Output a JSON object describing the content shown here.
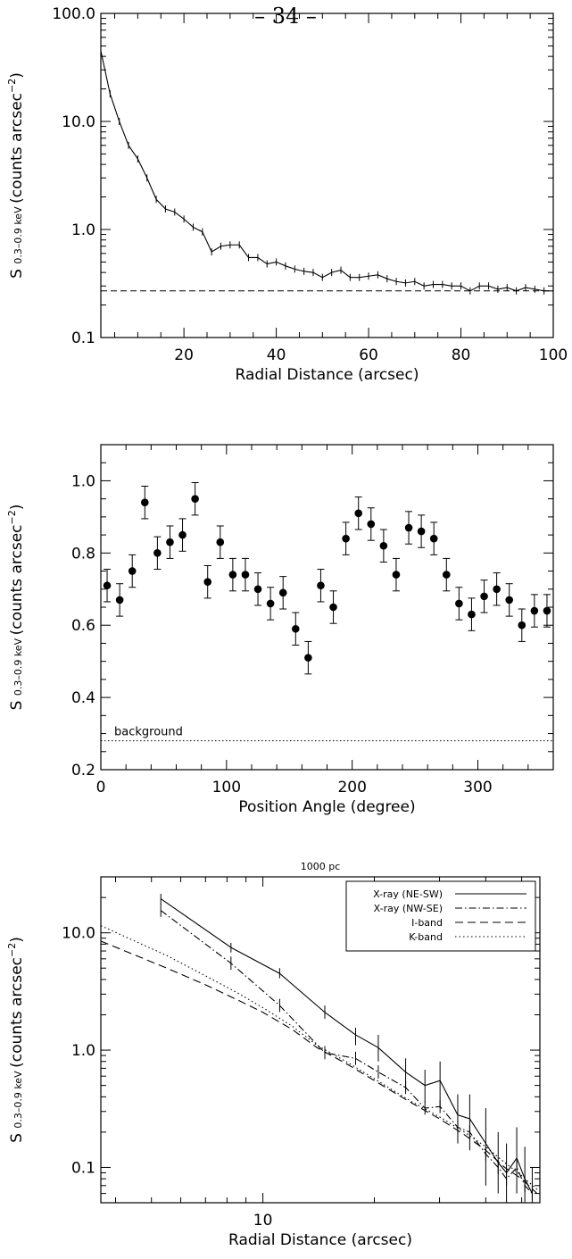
{
  "page": {
    "header": "– 34 –"
  },
  "ylabel": {
    "prefix": "S",
    "sub": "0.3–0.9 keV",
    "body": "(counts arcsec",
    "sup": "−2",
    "suffix": ")"
  },
  "chart_data": [
    {
      "type": "line",
      "xlabel": "Radial Distance (arcsec)",
      "xscale": "linear",
      "yscale": "log",
      "xlim": [
        2,
        100
      ],
      "ylim": [
        0.1,
        100
      ],
      "xticks": [
        20,
        40,
        60,
        80,
        100
      ],
      "xtick_labels": [
        "20",
        "40",
        "60",
        "80",
        "100"
      ],
      "yticks": [
        0.1,
        1,
        10,
        100
      ],
      "ytick_labels": [
        "0.1",
        "1.0",
        "10.0",
        "100.0"
      ],
      "background_level": 0.27,
      "series": [
        {
          "x": [
            2,
            4,
            6,
            8,
            10,
            12,
            14,
            16,
            18,
            20,
            22,
            24,
            26,
            28,
            30,
            32,
            34,
            36,
            38,
            40,
            42,
            44,
            46,
            48,
            50,
            52,
            54,
            56,
            58,
            60,
            62,
            64,
            66,
            68,
            70,
            72,
            74,
            76,
            78,
            80,
            82,
            84,
            86,
            88,
            90,
            92,
            94,
            96,
            98,
            100
          ],
          "y": [
            45,
            18,
            10,
            6,
            4.5,
            3,
            1.9,
            1.55,
            1.45,
            1.25,
            1.05,
            0.95,
            0.62,
            0.7,
            0.72,
            0.72,
            0.55,
            0.55,
            0.48,
            0.5,
            0.46,
            0.43,
            0.41,
            0.4,
            0.36,
            0.4,
            0.42,
            0.36,
            0.36,
            0.37,
            0.38,
            0.35,
            0.33,
            0.32,
            0.33,
            0.3,
            0.31,
            0.31,
            0.3,
            0.3,
            0.27,
            0.3,
            0.3,
            0.28,
            0.29,
            0.27,
            0.29,
            0.28,
            0.27,
            0.27
          ]
        }
      ]
    },
    {
      "type": "scatter",
      "xlabel": "Position Angle (degree)",
      "xscale": "linear",
      "yscale": "linear",
      "xlim": [
        0,
        360
      ],
      "ylim": [
        0.2,
        1.1
      ],
      "xticks": [
        0,
        100,
        200,
        300
      ],
      "xtick_labels": [
        "0",
        "100",
        "200",
        "300"
      ],
      "yticks": [
        0.2,
        0.4,
        0.6,
        0.8,
        1.0
      ],
      "ytick_labels": [
        "0.2",
        "0.4",
        "0.6",
        "0.8",
        "1.0"
      ],
      "background_level": 0.28,
      "background_label": "background",
      "series": [
        {
          "x": [
            5,
            15,
            25,
            35,
            45,
            55,
            65,
            75,
            85,
            95,
            105,
            115,
            125,
            135,
            145,
            155,
            165,
            175,
            185,
            195,
            205,
            215,
            225,
            235,
            245,
            255,
            265,
            275,
            285,
            295,
            305,
            315,
            325,
            335,
            345,
            355
          ],
          "y": [
            0.71,
            0.67,
            0.75,
            0.94,
            0.8,
            0.83,
            0.85,
            0.95,
            0.72,
            0.83,
            0.74,
            0.74,
            0.7,
            0.66,
            0.69,
            0.59,
            0.51,
            0.71,
            0.65,
            0.84,
            0.91,
            0.88,
            0.82,
            0.74,
            0.87,
            0.86,
            0.84,
            0.74,
            0.66,
            0.63,
            0.68,
            0.7,
            0.67,
            0.6,
            0.64,
            0.64
          ],
          "err": 0.045
        }
      ]
    },
    {
      "type": "line",
      "title": "1000 pc",
      "xlabel": "Radial Distance (arcsec)",
      "xscale": "log",
      "yscale": "log",
      "xlim": [
        3.65,
        56
      ],
      "ylim": [
        0.05,
        30
      ],
      "xticks": [
        10
      ],
      "xtick_labels": [
        "10"
      ],
      "yticks": [
        0.1,
        1,
        10
      ],
      "ytick_labels": [
        "0.1",
        "1.0",
        "10.0"
      ],
      "legend_position": "top-right",
      "series": [
        {
          "name": "X-ray (NE-SW)",
          "style": "solid",
          "x": [
            5.3,
            8.2,
            11.1,
            14.7,
            17.8,
            20.5,
            24.3,
            27.4,
            30.1,
            33.6,
            36.2,
            40,
            43.2,
            45.5,
            48.5,
            51,
            53.4
          ],
          "y": [
            19.5,
            7.5,
            4.5,
            2.1,
            1.35,
            1.05,
            0.65,
            0.5,
            0.55,
            0.28,
            0.26,
            0.16,
            0.11,
            0.09,
            0.12,
            0.08,
            0.06
          ],
          "err_lo": [
            17.5,
            6.8,
            4.1,
            1.85,
            1.1,
            0.8,
            0.48,
            0.36,
            0.33,
            0.16,
            0.14,
            0.07,
            0.06,
            0.05,
            0.06,
            0.05,
            0.04
          ],
          "err_hi": [
            21.5,
            8.2,
            5,
            2.4,
            1.55,
            1.35,
            0.85,
            0.68,
            0.8,
            0.42,
            0.42,
            0.32,
            0.2,
            0.16,
            0.22,
            0.15,
            0.1
          ]
        },
        {
          "name": "X-ray (NW-SE)",
          "style": "dashdot",
          "x": [
            5.3,
            8.2,
            11.1,
            14.7,
            17.8,
            20.5,
            24.3,
            27.4,
            30.1,
            33.6,
            36.2,
            40,
            43.2,
            45.5,
            48.5,
            51,
            53.4
          ],
          "y": [
            15.5,
            5.5,
            2.4,
            0.95,
            0.85,
            0.65,
            0.48,
            0.32,
            0.33,
            0.22,
            0.2,
            0.13,
            0.1,
            0.08,
            0.1,
            0.07,
            0.06
          ]
        },
        {
          "name": "I-band",
          "style": "dashed",
          "x": [
            3.65,
            5.5,
            7,
            8.5,
            10,
            12,
            14,
            17,
            20,
            25,
            30,
            35,
            40,
            45,
            50,
            55
          ],
          "y": [
            8.5,
            5,
            3.6,
            2.7,
            2.1,
            1.5,
            1.05,
            0.75,
            0.55,
            0.36,
            0.26,
            0.19,
            0.14,
            0.1,
            0.08,
            0.06
          ]
        },
        {
          "name": "K-band",
          "style": "dotted",
          "x": [
            3.65,
            5.5,
            7,
            8.5,
            10,
            12,
            14,
            17,
            20,
            25,
            30,
            35,
            40,
            45,
            50,
            55
          ],
          "y": [
            11.5,
            6.4,
            4.3,
            3.1,
            2.3,
            1.6,
            1.1,
            0.78,
            0.57,
            0.37,
            0.27,
            0.2,
            0.15,
            0.11,
            0.085,
            0.065
          ]
        }
      ]
    }
  ]
}
